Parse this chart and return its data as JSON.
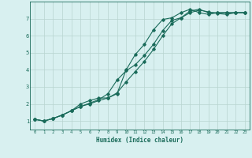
{
  "xlabel": "Humidex (Indice chaleur)",
  "background_color": "#d8f0f0",
  "grid_color": "#b8d4d0",
  "line_color": "#1a6b5a",
  "xlim": [
    -0.5,
    23.5
  ],
  "ylim": [
    0.5,
    8.0
  ],
  "xticks": [
    0,
    1,
    2,
    3,
    4,
    5,
    6,
    7,
    8,
    9,
    10,
    11,
    12,
    13,
    14,
    15,
    16,
    17,
    18,
    19,
    20,
    21,
    22,
    23
  ],
  "yticks": [
    1,
    2,
    3,
    4,
    5,
    6,
    7
  ],
  "line1_x": [
    0,
    1,
    2,
    3,
    4,
    5,
    6,
    7,
    8,
    9,
    10,
    11,
    12,
    13,
    14,
    15,
    16,
    17,
    18,
    19,
    20,
    21,
    22,
    23
  ],
  "line1_y": [
    1.1,
    1.0,
    1.15,
    1.35,
    1.6,
    2.0,
    2.2,
    2.35,
    2.35,
    2.6,
    4.0,
    4.9,
    5.5,
    6.35,
    6.95,
    7.05,
    7.35,
    7.55,
    7.35,
    7.25,
    7.35,
    7.35,
    7.35,
    7.35
  ],
  "line2_x": [
    0,
    1,
    2,
    3,
    4,
    5,
    6,
    7,
    8,
    9,
    10,
    11,
    12,
    13,
    14,
    15,
    16,
    17,
    18,
    19,
    20,
    21,
    22,
    23
  ],
  "line2_y": [
    1.1,
    1.0,
    1.15,
    1.35,
    1.6,
    1.85,
    2.05,
    2.25,
    2.6,
    3.4,
    3.95,
    4.3,
    4.85,
    5.5,
    6.3,
    6.9,
    7.05,
    7.45,
    7.55,
    7.35,
    7.35,
    7.35,
    7.35,
    7.35
  ],
  "line3_x": [
    0,
    1,
    2,
    3,
    4,
    5,
    6,
    7,
    8,
    9,
    10,
    11,
    12,
    13,
    14,
    15,
    16,
    17,
    18,
    19,
    20,
    21,
    22,
    23
  ],
  "line3_y": [
    1.1,
    1.0,
    1.15,
    1.35,
    1.6,
    1.85,
    2.0,
    2.2,
    2.35,
    2.65,
    3.3,
    3.9,
    4.5,
    5.2,
    6.0,
    6.7,
    7.05,
    7.35,
    7.5,
    7.4,
    7.3,
    7.25,
    7.35,
    7.35
  ]
}
